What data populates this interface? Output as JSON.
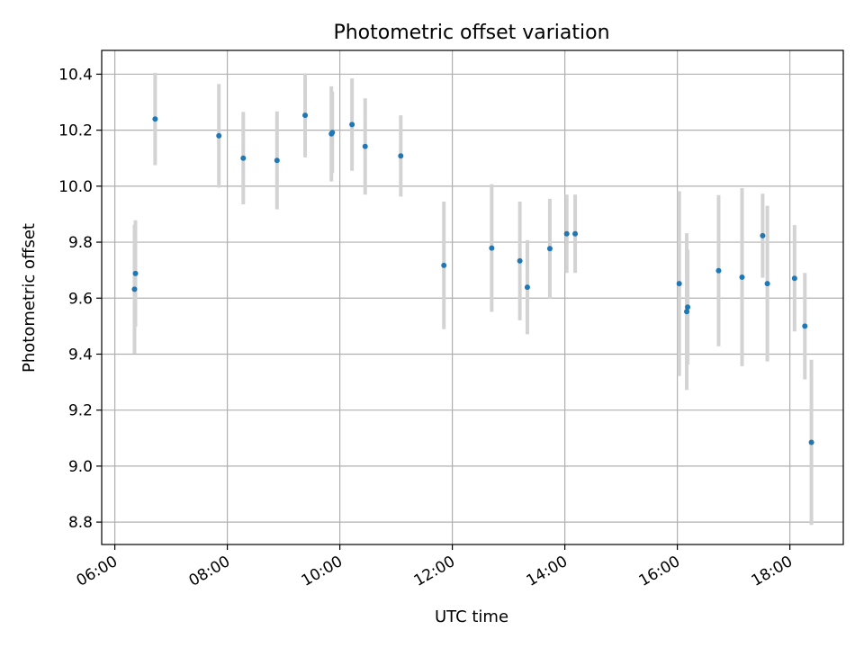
{
  "chart_data": {
    "type": "scatter",
    "title": "Photometric offset variation",
    "xlabel": "UTC time",
    "ylabel": "Photometric offset",
    "xlim": [
      "05:46",
      "18:57"
    ],
    "ylim": [
      8.72,
      10.485
    ],
    "grid": true,
    "x_ticks": [
      "06:00",
      "08:00",
      "10:00",
      "12:00",
      "14:00",
      "16:00",
      "18:00"
    ],
    "y_ticks": [
      "8.8",
      "9.0",
      "9.2",
      "9.4",
      "9.6",
      "9.8",
      "10.0",
      "10.2",
      "10.4"
    ],
    "colors": {
      "point": "#1f77b4",
      "errorbar": "#d3d3d3",
      "grid": "#b0b0b0"
    },
    "series": [
      {
        "x": [
          "06:21",
          "06:22",
          "06:43",
          "07:51",
          "08:17",
          "08:53",
          "09:23",
          "09:51",
          "09:52",
          "10:13",
          "10:27",
          "11:05",
          "11:51",
          "12:42",
          "13:12",
          "13:20",
          "13:44",
          "14:02",
          "14:11",
          "16:02",
          "16:10",
          "16:11",
          "16:44",
          "17:09",
          "17:31",
          "17:36",
          "18:05",
          "18:16",
          "18:23"
        ],
        "y": [
          9.632,
          9.688,
          10.24,
          10.18,
          10.1,
          10.092,
          10.253,
          10.187,
          10.192,
          10.22,
          10.142,
          10.108,
          9.717,
          9.779,
          9.733,
          9.639,
          9.777,
          9.83,
          9.83,
          9.652,
          9.552,
          9.568,
          9.698,
          9.675,
          9.823,
          9.652,
          9.671,
          9.5,
          9.085
        ],
        "yerr": [
          0.23,
          0.19,
          0.165,
          0.185,
          0.165,
          0.175,
          0.15,
          0.17,
          0.145,
          0.165,
          0.172,
          0.145,
          0.228,
          0.228,
          0.212,
          0.168,
          0.178,
          0.14,
          0.14,
          0.33,
          0.28,
          0.205,
          0.27,
          0.318,
          0.15,
          0.278,
          0.19,
          0.19,
          0.295
        ]
      }
    ]
  }
}
